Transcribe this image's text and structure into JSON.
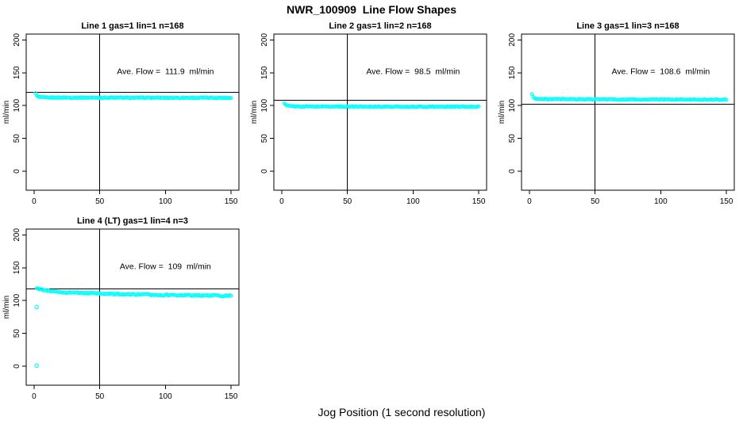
{
  "figure": {
    "title": "NWR_100909  Line Flow Shapes",
    "outer_xlabel": "Jog Position (1 second resolution)",
    "background_color": "#ffffff",
    "point_color": "#00ffff",
    "axis_color": "#000000"
  },
  "chart_data": [
    {
      "type": "scatter",
      "title": "Line 1 gas=1 lin=1 n=168",
      "annotation": "Ave. Flow =  111.9  ml/min",
      "ave_flow_ml_min": 111.9,
      "n": 168,
      "ylabel": "ml/min",
      "xlim": [
        -6,
        156
      ],
      "ylim": [
        -28.8,
        208.8
      ],
      "xticks": [
        0,
        50,
        100,
        150
      ],
      "yticks": [
        0,
        50,
        100,
        150,
        200
      ],
      "vline_x": 50,
      "hline_y": 120,
      "series_profile": [
        [
          1,
          119.5
        ],
        [
          2,
          115
        ],
        [
          4,
          112.8
        ],
        [
          8,
          112.2
        ],
        [
          80,
          111.9
        ],
        [
          150,
          111.8
        ]
      ],
      "noise": 0.7,
      "x_start": 1,
      "x_end": 150,
      "x_step": 1,
      "outliers": [],
      "annotation_pos": [
        100,
        148
      ],
      "seed": 1
    },
    {
      "type": "scatter",
      "title": "Line 2 gas=1 lin=2 n=168",
      "annotation": "Ave. Flow =  98.5  ml/min",
      "ave_flow_ml_min": 98.5,
      "n": 168,
      "ylabel": "ml/min",
      "xlim": [
        -6,
        156
      ],
      "ylim": [
        -28.8,
        208.8
      ],
      "xticks": [
        0,
        50,
        100,
        150
      ],
      "yticks": [
        0,
        50,
        100,
        150,
        200
      ],
      "vline_x": 50,
      "hline_y": 108,
      "series_profile": [
        [
          2,
          103
        ],
        [
          3,
          101
        ],
        [
          5,
          99.5
        ],
        [
          10,
          98.7
        ],
        [
          80,
          98.4
        ],
        [
          150,
          98.2
        ]
      ],
      "noise": 0.7,
      "x_start": 2,
      "x_end": 150,
      "x_step": 1,
      "outliers": [],
      "annotation_pos": [
        100,
        148
      ],
      "seed": 2
    },
    {
      "type": "scatter",
      "title": "Line 3 gas=1 lin=3 n=168",
      "annotation": "Ave. Flow =  108.6  ml/min",
      "ave_flow_ml_min": 108.6,
      "n": 168,
      "ylabel": "ml/min",
      "xlim": [
        -6,
        156
      ],
      "ylim": [
        -28.8,
        208.8
      ],
      "xticks": [
        0,
        50,
        100,
        150
      ],
      "yticks": [
        0,
        50,
        100,
        150,
        200
      ],
      "vline_x": 50,
      "hline_y": 102,
      "series_profile": [
        [
          2,
          117
        ],
        [
          3,
          113
        ],
        [
          5,
          110.5
        ],
        [
          10,
          109.8
        ],
        [
          80,
          109.2
        ],
        [
          150,
          109
        ]
      ],
      "noise": 0.7,
      "x_start": 2,
      "x_end": 150,
      "x_step": 1,
      "outliers": [],
      "annotation_pos": [
        100,
        148
      ],
      "seed": 3
    },
    {
      "type": "scatter",
      "title": "Line 4 (LT) gas=1 lin=4 n=3",
      "annotation": "Ave. Flow =  109  ml/min",
      "ave_flow_ml_min": 109,
      "n": 3,
      "ylabel": "ml/min",
      "xlim": [
        -6,
        156
      ],
      "ylim": [
        -28.8,
        208.8
      ],
      "xticks": [
        0,
        50,
        100,
        150
      ],
      "yticks": [
        0,
        50,
        100,
        150,
        200
      ],
      "vline_x": 50,
      "hline_y": 118,
      "series_profile": [
        [
          2,
          119.5
        ],
        [
          4,
          117.5
        ],
        [
          8,
          115.5
        ],
        [
          15,
          113.5
        ],
        [
          30,
          112
        ],
        [
          60,
          110
        ],
        [
          100,
          108.5
        ],
        [
          150,
          107.3
        ]
      ],
      "noise": 1.0,
      "x_start": 2,
      "x_end": 150,
      "x_step": 1,
      "outliers": [
        [
          2,
          90
        ],
        [
          2,
          1
        ]
      ],
      "annotation_pos": [
        100,
        148
      ],
      "seed": 4
    }
  ]
}
